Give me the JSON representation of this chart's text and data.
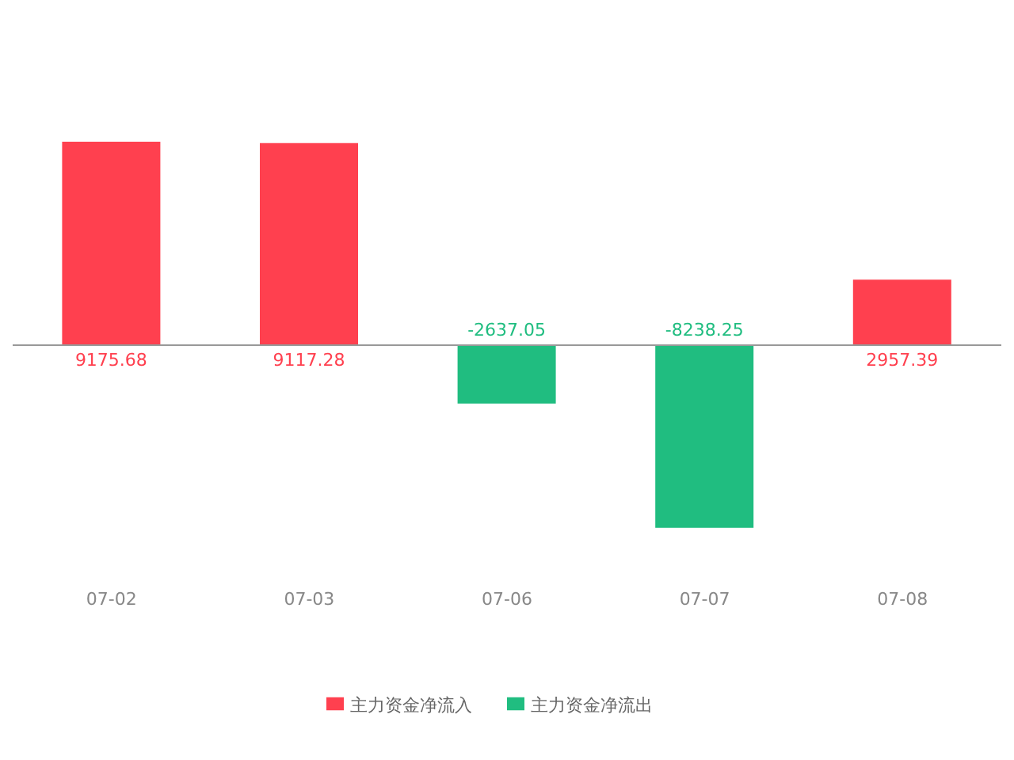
{
  "chart_data": {
    "type": "bar",
    "categories": [
      "07-02",
      "07-03",
      "07-06",
      "07-07",
      "07-08"
    ],
    "stacked": true,
    "data_labels": true,
    "legend": "bottom",
    "grid": false,
    "series": [
      {
        "name": "主力资金净流入",
        "color": "#ff404f",
        "values": [
          9175.68,
          9117.28,
          null,
          null,
          2957.39
        ]
      },
      {
        "name": "主力资金净流出",
        "color": "#20bd80",
        "values": [
          null,
          null,
          -2637.05,
          -8238.25,
          null
        ]
      }
    ]
  }
}
